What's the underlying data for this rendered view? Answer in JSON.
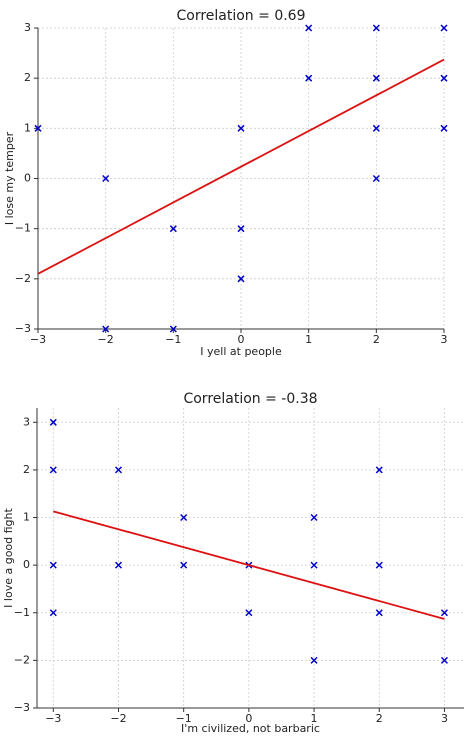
{
  "chart_data": [
    {
      "type": "scatter",
      "title": "Correlation = 0.69",
      "x_label": "I yell at people",
      "y_label": "I lose my temper",
      "x": [
        -3,
        -2,
        -2,
        -1,
        -1,
        0,
        0,
        0,
        1,
        1,
        2,
        2,
        2,
        2,
        3,
        3,
        3
      ],
      "y": [
        1,
        0,
        -3,
        -1,
        -3,
        1,
        -1,
        -2,
        3,
        2,
        3,
        2,
        1,
        0,
        3,
        2,
        1
      ],
      "color": "#0000cc",
      "fit_line": {
        "x": [
          -3,
          3
        ],
        "y": [
          -1.9,
          2.37
        ],
        "color": "#dd1111"
      },
      "xlim": [
        -3,
        3
      ],
      "ylim": [
        -3,
        3
      ],
      "xticks": [
        {
          "value": -3,
          "label": "−3"
        },
        {
          "value": -2,
          "label": "−2"
        },
        {
          "value": -1,
          "label": "−1"
        },
        0,
        1,
        2,
        3
      ],
      "yticks": [
        {
          "value": -3,
          "label": "−3"
        },
        {
          "value": -2,
          "label": "−2"
        },
        {
          "value": -1,
          "label": "−1"
        },
        0,
        1,
        2,
        3
      ],
      "grid": true
    },
    {
      "type": "scatter",
      "title": "Correlation = -0.38",
      "x_label": "I'm civilized, not barbaric",
      "y_label": "I love a good fight",
      "x": [
        -3,
        -3,
        -3,
        -3,
        -2,
        -2,
        -1,
        -1,
        0,
        0,
        1,
        1,
        1,
        2,
        2,
        2,
        3,
        3
      ],
      "y": [
        3,
        2,
        0,
        -1,
        2,
        0,
        1,
        0,
        0,
        -1,
        1,
        0,
        -2,
        2,
        0,
        -1,
        -1,
        -2
      ],
      "color": "#0000cc",
      "fit_line": {
        "x": [
          -3,
          3
        ],
        "y": [
          1.13,
          -1.13
        ],
        "color": "#dd1111"
      },
      "xlim": [
        -3.25,
        3.3
      ],
      "ylim": [
        -3,
        3.3
      ],
      "xticks": [
        {
          "value": -3,
          "label": "−3"
        },
        {
          "value": -2,
          "label": "−2"
        },
        {
          "value": -1,
          "label": "−1"
        },
        0,
        1,
        2,
        3
      ],
      "yticks": [
        {
          "value": -3,
          "label": "−3"
        },
        {
          "value": -2,
          "label": "−2"
        },
        {
          "value": -1,
          "label": "−1"
        },
        0,
        1,
        2,
        3
      ],
      "grid": true
    }
  ]
}
